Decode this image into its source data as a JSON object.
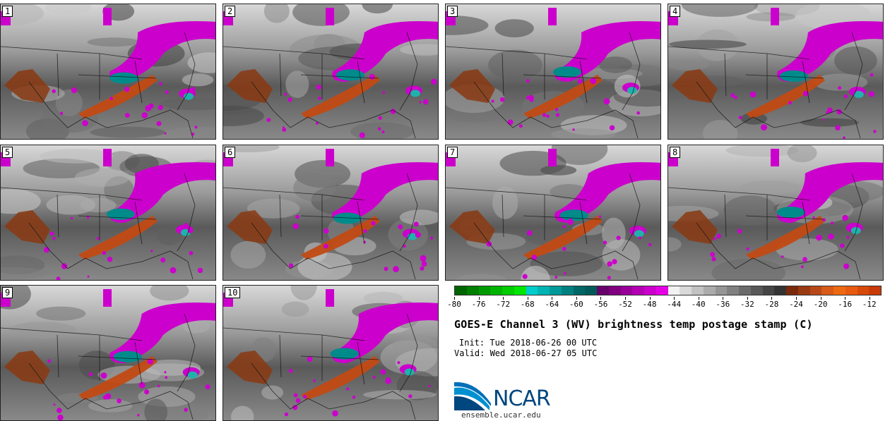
{
  "panels": [
    "1",
    "2",
    "3",
    "4",
    "5",
    "6",
    "7",
    "8",
    "9",
    "10"
  ],
  "colorbar": {
    "colors": [
      "#006400",
      "#007f00",
      "#009900",
      "#00b300",
      "#00cc00",
      "#00e600",
      "#00cccc",
      "#00b3b3",
      "#009999",
      "#008080",
      "#006666",
      "#005959",
      "#66006b",
      "#800080",
      "#99009a",
      "#b300b3",
      "#cc00cc",
      "#e600e6",
      "#f2f2f2",
      "#d9d9d9",
      "#c2c2c2",
      "#ababab",
      "#959595",
      "#808080",
      "#6b6b6b",
      "#585858",
      "#454545",
      "#333333",
      "#7a2a0a",
      "#9a3a10",
      "#b84818",
      "#d85a18",
      "#ee6a10",
      "#e85a10",
      "#d84a0a",
      "#c83a08"
    ],
    "vmin": -80,
    "vmax": -10,
    "tick_labels": [
      -80,
      -76,
      -72,
      -68,
      -64,
      -60,
      -56,
      -52,
      -48,
      -44,
      -40,
      -36,
      -32,
      -28,
      -24,
      -20,
      -16,
      -12
    ]
  },
  "title": "GOES-E Channel 3 (WV) brightness temp postage stamp (C)",
  "init": "Init: Tue 2018-06-26 00 UTC",
  "valid": "Valid: Wed 2018-06-27 05 UTC",
  "logo": {
    "text": "NCAR",
    "url": "ensemble.ucar.edu"
  }
}
